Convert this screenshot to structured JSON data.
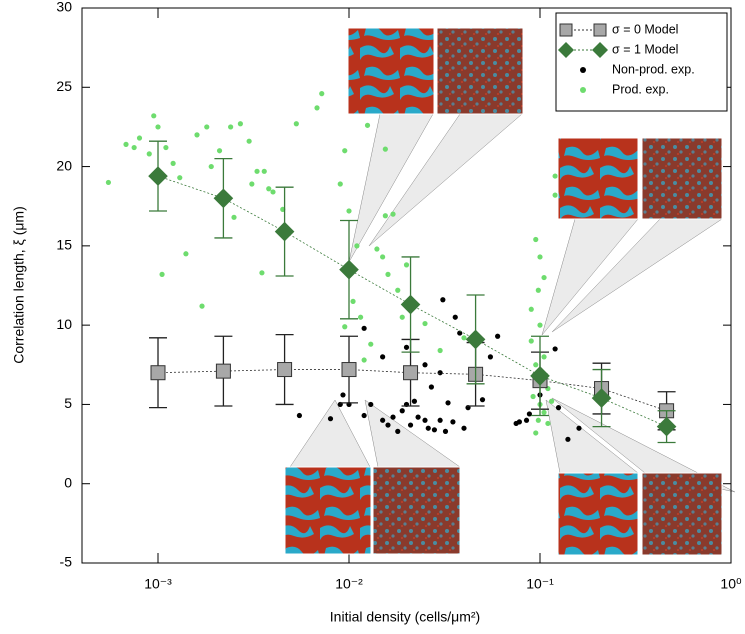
{
  "chart_data": {
    "type": "scatter",
    "xlabel": "Initial density (cells/μm²)",
    "ylabel": "Correlation length, ξ (μm)",
    "xscale": "log",
    "xlim": [
      0.0004,
      1
    ],
    "xticks": [
      {
        "value": 0.001,
        "label": "10⁻³"
      },
      {
        "value": 0.01,
        "label": "10⁻²"
      },
      {
        "value": 0.1,
        "label": "10⁻¹"
      },
      {
        "value": 1,
        "label": "10⁰"
      }
    ],
    "ylim": [
      -5,
      30
    ],
    "yticks": [
      -5,
      0,
      5,
      10,
      15,
      20,
      25,
      30
    ],
    "legend": "upper right",
    "series": [
      {
        "name": "σ = 0 Model",
        "kind": "model",
        "marker": "square",
        "color": "#a8a8a8",
        "x": [
          0.001,
          0.0022,
          0.0046,
          0.01,
          0.021,
          0.046,
          0.1,
          0.21,
          0.46
        ],
        "values": [
          7.0,
          7.1,
          7.2,
          7.2,
          7.0,
          6.9,
          6.5,
          6.0,
          4.6
        ],
        "errors": [
          2.2,
          2.2,
          2.2,
          2.1,
          2.1,
          2.0,
          1.8,
          1.6,
          1.2
        ]
      },
      {
        "name": "σ = 1 Model",
        "kind": "model",
        "marker": "diamond",
        "color": "#3b7a3b",
        "x": [
          0.001,
          0.0022,
          0.0046,
          0.01,
          0.021,
          0.046,
          0.1,
          0.21,
          0.46
        ],
        "values": [
          19.4,
          18.0,
          15.9,
          13.5,
          11.3,
          9.1,
          6.8,
          5.4,
          3.6
        ],
        "errors": [
          2.2,
          2.5,
          2.8,
          3.1,
          3.0,
          2.8,
          2.5,
          1.8,
          1.0
        ]
      },
      {
        "name": "Non-prod. exp.",
        "kind": "points",
        "color": "#000000",
        "x": [
          0.0055,
          0.008,
          0.009,
          0.0093,
          0.01,
          0.012,
          0.013,
          0.015,
          0.016,
          0.017,
          0.018,
          0.019,
          0.02,
          0.021,
          0.022,
          0.023,
          0.025,
          0.026,
          0.027,
          0.028,
          0.03,
          0.031,
          0.032,
          0.033,
          0.035,
          0.036,
          0.038,
          0.04,
          0.042,
          0.045,
          0.05,
          0.055,
          0.06,
          0.075,
          0.078,
          0.085,
          0.088,
          0.1,
          0.12,
          0.125,
          0.14,
          0.16,
          0.015,
          0.012,
          0.02,
          0.025,
          0.03
        ],
        "values": [
          4.3,
          4.1,
          5.0,
          5.6,
          5.0,
          4.3,
          5.0,
          4.0,
          3.7,
          4.2,
          3.3,
          4.6,
          5.0,
          3.7,
          5.2,
          4.2,
          4.0,
          3.5,
          6.1,
          3.4,
          4.0,
          11.6,
          3.3,
          5.1,
          3.9,
          10.5,
          9.5,
          3.5,
          4.8,
          6.9,
          5.3,
          8.0,
          9.3,
          3.8,
          3.9,
          4.0,
          4.4,
          5.6,
          8.5,
          4.8,
          2.8,
          3.5,
          8.0,
          9.8,
          8.6,
          7.5,
          7.0
        ]
      },
      {
        "name": "Prod. exp.",
        "kind": "points",
        "color": "#6edc6e",
        "x": [
          0.00055,
          0.00068,
          0.00075,
          0.0008,
          0.0009,
          0.00095,
          0.001,
          0.0011,
          0.00105,
          0.0012,
          0.0013,
          0.0014,
          0.0016,
          0.0017,
          0.0018,
          0.0019,
          0.0021,
          0.0024,
          0.0025,
          0.0027,
          0.003,
          0.0031,
          0.0033,
          0.0035,
          0.0036,
          0.0038,
          0.004,
          0.0045,
          0.0053,
          0.0068,
          0.0072,
          0.009,
          0.0095,
          0.01,
          0.011,
          0.0105,
          0.0095,
          0.0115,
          0.012,
          0.013,
          0.014,
          0.015,
          0.0155,
          0.017,
          0.016,
          0.018,
          0.019,
          0.0155,
          0.0125,
          0.025,
          0.03,
          0.04,
          0.02,
          0.095,
          0.1,
          0.105,
          0.098,
          0.09,
          0.1,
          0.105,
          0.095,
          0.1,
          0.11,
          0.092,
          0.1,
          0.105,
          0.098,
          0.11,
          0.12,
          0.12,
          0.09,
          0.115,
          0.095
        ],
        "values": [
          19.0,
          21.4,
          21.2,
          21.8,
          20.8,
          23.2,
          22.5,
          21.2,
          13.2,
          20.2,
          19.3,
          14.5,
          22.0,
          11.2,
          22.5,
          20.0,
          21.0,
          22.5,
          16.8,
          22.7,
          21.6,
          18.9,
          19.7,
          13.3,
          19.7,
          18.6,
          18.4,
          17.3,
          22.7,
          23.7,
          24.6,
          18.9,
          21.0,
          17.2,
          15.0,
          11.5,
          9.9,
          10.5,
          7.8,
          8.8,
          14.8,
          14.3,
          16.9,
          17.0,
          13.2,
          12.2,
          10.5,
          21.1,
          22.6,
          10.1,
          8.4,
          9.2,
          13.8,
          15.4,
          14.3,
          13.0,
          12.2,
          11.0,
          10.0,
          8.0,
          7.5,
          6.8,
          6.0,
          5.5,
          5.0,
          4.5,
          4.0,
          3.8,
          18.2,
          19.4,
          9.0,
          5.2,
          3.2
        ]
      }
    ]
  }
}
